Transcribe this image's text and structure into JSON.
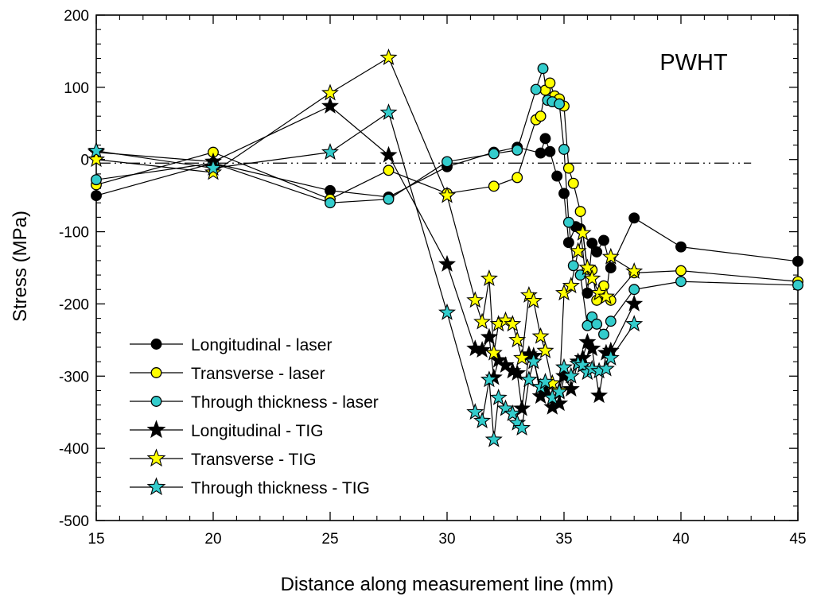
{
  "chart_data": {
    "type": "scatter",
    "title": "",
    "annotation": "PWHT",
    "xlabel": "Distance along measurement line  (mm)",
    "ylabel": "Stress  (MPa)",
    "xlim": [
      15,
      45
    ],
    "ylim": [
      -500,
      200
    ],
    "xticks": [
      15,
      20,
      25,
      30,
      35,
      40,
      45
    ],
    "yticks": [
      -500,
      -400,
      -300,
      -200,
      -100,
      0,
      100,
      200
    ],
    "grid": false,
    "legend_position": "bottom-left",
    "reference_line": {
      "y": -5,
      "x_start": 15,
      "x_end": 43,
      "style": "dash-dot"
    },
    "series": [
      {
        "name": "Longitudinal - laser",
        "marker": "circle",
        "fill": "#000000",
        "x": [
          15,
          20,
          25,
          27.5,
          30,
          32,
          33,
          34,
          34.2,
          34.4,
          34.7,
          35,
          35.2,
          35.5,
          35.7,
          36,
          36.2,
          36.4,
          36.7,
          37,
          38,
          40,
          45
        ],
        "y": [
          -50,
          -5,
          -43,
          -52,
          -10,
          10,
          17,
          9,
          29,
          11,
          -23,
          -47,
          -115,
          -93,
          -96,
          -185,
          -116,
          -128,
          -112,
          -150,
          -81,
          -121,
          -141
        ]
      },
      {
        "name": "Transverse - laser",
        "marker": "circle",
        "fill": "#ffff00",
        "x": [
          15,
          20,
          25,
          27.5,
          30,
          32,
          33,
          33.8,
          34,
          34.2,
          34.4,
          34.6,
          34.8,
          35,
          35.2,
          35.4,
          35.7,
          36,
          36.2,
          36.4,
          36.7,
          37,
          38,
          40,
          45
        ],
        "y": [
          -35,
          10,
          -55,
          -15,
          -47,
          -37,
          -25,
          55,
          60,
          96,
          106,
          88,
          84,
          74,
          -12,
          -33,
          -72,
          -152,
          -153,
          -195,
          -175,
          -195,
          -157,
          -154,
          -169
        ]
      },
      {
        "name": "Through thickness - laser",
        "marker": "circle",
        "fill": "#33cccc",
        "x": [
          15,
          20,
          25,
          27.5,
          30,
          32,
          33,
          33.8,
          34.1,
          34.3,
          34.5,
          34.8,
          35,
          35.2,
          35.4,
          35.7,
          36,
          36.2,
          36.4,
          36.7,
          37,
          38,
          40,
          45
        ],
        "y": [
          -28,
          -5,
          -60,
          -55,
          -3,
          8,
          13,
          97,
          126,
          82,
          80,
          77,
          14,
          -87,
          -147,
          -160,
          -230,
          -218,
          -228,
          -242,
          -224,
          -180,
          -169,
          -174
        ]
      },
      {
        "name": "Longitudinal - TIG",
        "marker": "star",
        "fill": "#000000",
        "x": [
          15,
          20,
          25,
          27.5,
          30,
          31.2,
          31.5,
          31.8,
          32,
          32.2,
          32.5,
          32.8,
          33,
          33.2,
          33.5,
          33.7,
          34,
          34.2,
          34.5,
          34.8,
          35,
          35.3,
          35.6,
          35.8,
          36,
          36.2,
          36.5,
          36.8,
          37,
          38
        ],
        "y": [
          10,
          -3,
          74,
          6,
          -145,
          -262,
          -264,
          -246,
          -302,
          -278,
          -285,
          -293,
          -296,
          -345,
          -270,
          -272,
          -328,
          -318,
          -343,
          -338,
          -300,
          -318,
          -280,
          -275,
          -253,
          -262,
          -327,
          -268,
          -265,
          -200
        ]
      },
      {
        "name": "Transverse - TIG",
        "marker": "star",
        "fill": "#ffff00",
        "x": [
          15,
          20,
          25,
          27.5,
          30,
          31.2,
          31.5,
          31.8,
          32,
          32.2,
          32.5,
          32.8,
          33,
          33.2,
          33.5,
          33.7,
          34,
          34.2,
          34.5,
          34.8,
          35,
          35.3,
          35.6,
          35.8,
          36,
          36.2,
          36.5,
          36.8,
          37,
          38
        ],
        "y": [
          0,
          -18,
          92,
          141,
          -50,
          -195,
          -225,
          -165,
          -268,
          -228,
          -223,
          -228,
          -250,
          -275,
          -188,
          -196,
          -245,
          -265,
          -310,
          -320,
          -185,
          -175,
          -127,
          -102,
          -150,
          -165,
          -185,
          -190,
          -135,
          -155
        ]
      },
      {
        "name": "Through thickness - TIG",
        "marker": "star",
        "fill": "#33cccc",
        "x": [
          15,
          20,
          25,
          27.5,
          30,
          31.2,
          31.5,
          31.8,
          32,
          32.2,
          32.5,
          32.8,
          33,
          33.2,
          33.5,
          33.7,
          34,
          34.2,
          34.5,
          34.8,
          35,
          35.3,
          35.6,
          35.8,
          36,
          36.2,
          36.5,
          36.8,
          37,
          38
        ],
        "y": [
          12,
          -12,
          10,
          65,
          -212,
          -350,
          -362,
          -305,
          -388,
          -330,
          -345,
          -352,
          -365,
          -372,
          -305,
          -280,
          -315,
          -308,
          -330,
          -322,
          -288,
          -300,
          -283,
          -285,
          -295,
          -290,
          -293,
          -290,
          -275,
          -228
        ]
      }
    ]
  }
}
